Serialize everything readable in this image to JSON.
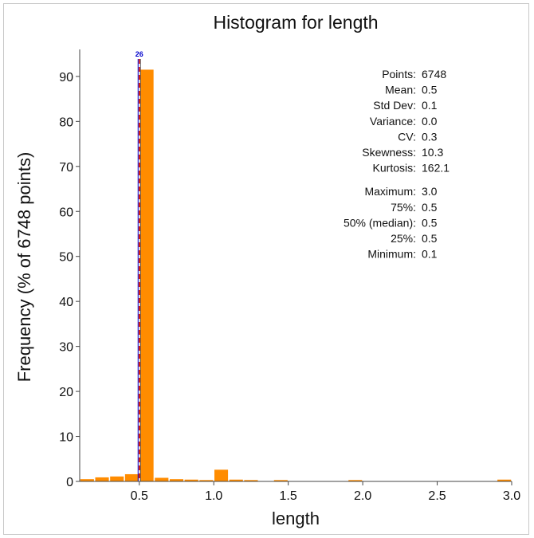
{
  "chart_data": {
    "type": "bar",
    "title": "Histogram for length",
    "xlabel": "length",
    "ylabel": "Frequency (% of 6748 points)",
    "xlim": [
      0.1,
      3.0
    ],
    "ylim": [
      0,
      96
    ],
    "xticks": [
      0.5,
      1.0,
      1.5,
      2.0,
      2.5,
      3.0
    ],
    "xtick_labels": [
      "0.5",
      "1.0",
      "1.5",
      "2.0",
      "2.5",
      "3.0"
    ],
    "yticks": [
      0,
      10,
      20,
      30,
      40,
      50,
      60,
      70,
      80,
      90
    ],
    "ytick_labels": [
      "0",
      "10",
      "20",
      "30",
      "40",
      "50",
      "60",
      "70",
      "80",
      "90"
    ],
    "bar_color": "#ff8c00",
    "bins": [
      {
        "x0": 0.1,
        "x1": 0.2,
        "value": 0.5
      },
      {
        "x0": 0.2,
        "x1": 0.3,
        "value": 0.9
      },
      {
        "x0": 0.3,
        "x1": 0.4,
        "value": 1.1
      },
      {
        "x0": 0.4,
        "x1": 0.5,
        "value": 1.6
      },
      {
        "x0": 0.5,
        "x1": 0.6,
        "value": 91.5
      },
      {
        "x0": 0.6,
        "x1": 0.7,
        "value": 0.8
      },
      {
        "x0": 0.7,
        "x1": 0.8,
        "value": 0.5
      },
      {
        "x0": 0.8,
        "x1": 0.9,
        "value": 0.4
      },
      {
        "x0": 0.9,
        "x1": 1.0,
        "value": 0.3
      },
      {
        "x0": 1.0,
        "x1": 1.1,
        "value": 2.6
      },
      {
        "x0": 1.1,
        "x1": 1.2,
        "value": 0.4
      },
      {
        "x0": 1.2,
        "x1": 1.3,
        "value": 0.3
      },
      {
        "x0": 1.4,
        "x1": 1.5,
        "value": 0.3
      },
      {
        "x0": 1.9,
        "x1": 2.0,
        "value": 0.3
      },
      {
        "x0": 2.9,
        "x1": 3.0,
        "value": 0.4
      }
    ],
    "markers": {
      "mean": {
        "value": 0.5,
        "color": "#e00000"
      },
      "median": {
        "value": 0.5,
        "color": "#0000cc"
      },
      "label_top": "26"
    },
    "stats": [
      {
        "label": "Points:",
        "value": "6748",
        "color": "#111111"
      },
      {
        "label": "Mean:",
        "value": "0.5",
        "color": "#e00000"
      },
      {
        "label": "Std Dev:",
        "value": "0.1",
        "color": "#111111"
      },
      {
        "label": "Variance:",
        "value": "0.0",
        "color": "#111111"
      },
      {
        "label": "CV:",
        "value": "0.3",
        "color": "#111111"
      },
      {
        "label": "Skewness:",
        "value": "10.3",
        "color": "#111111"
      },
      {
        "label": "Kurtosis:",
        "value": "162.1",
        "color": "#111111"
      },
      {
        "label": "Maximum:",
        "value": "3.0",
        "color": "#111111"
      },
      {
        "label": "75%:",
        "value": "0.5",
        "color": "#0000cc"
      },
      {
        "label": "50% (median):",
        "value": "0.5",
        "color": "#0000cc"
      },
      {
        "label": "25%:",
        "value": "0.5",
        "color": "#0000cc"
      },
      {
        "label": "Minimum:",
        "value": "0.1",
        "color": "#111111"
      }
    ]
  }
}
